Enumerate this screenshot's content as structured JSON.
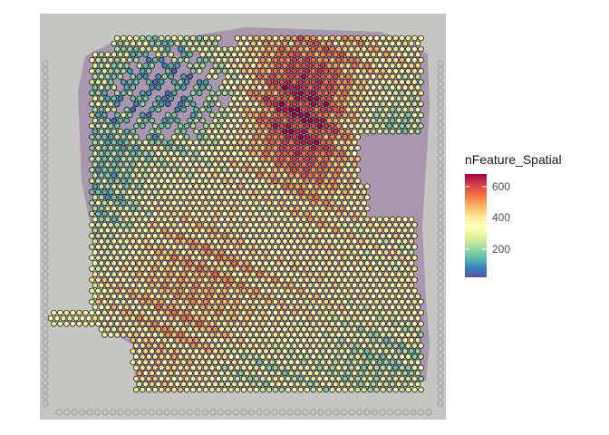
{
  "chart_data": {
    "type": "heatmap",
    "title": "",
    "xlabel": "",
    "ylabel": "",
    "grid": false,
    "legend": {
      "title": "nFeature_Spatial",
      "placement": "right",
      "ticks": [
        200,
        400,
        600
      ],
      "range": [
        20,
        680
      ],
      "palette": [
        "#5E4FA2",
        "#3288BD",
        "#66C2A5",
        "#ABDDA4",
        "#E6F598",
        "#FFFFBF",
        "#FEE08B",
        "#FDAE61",
        "#F46D43",
        "#D53E4F",
        "#9E0142"
      ]
    },
    "spot_grid": {
      "columns": 60,
      "rows": 66,
      "spot_count_approx": 3300
    },
    "background": "H&E tissue image, greyscale"
  },
  "colors": {
    "image_background": "#c4c6c2",
    "tissue_shadow": "#8a5a9a",
    "spot_outline": "#000000"
  }
}
